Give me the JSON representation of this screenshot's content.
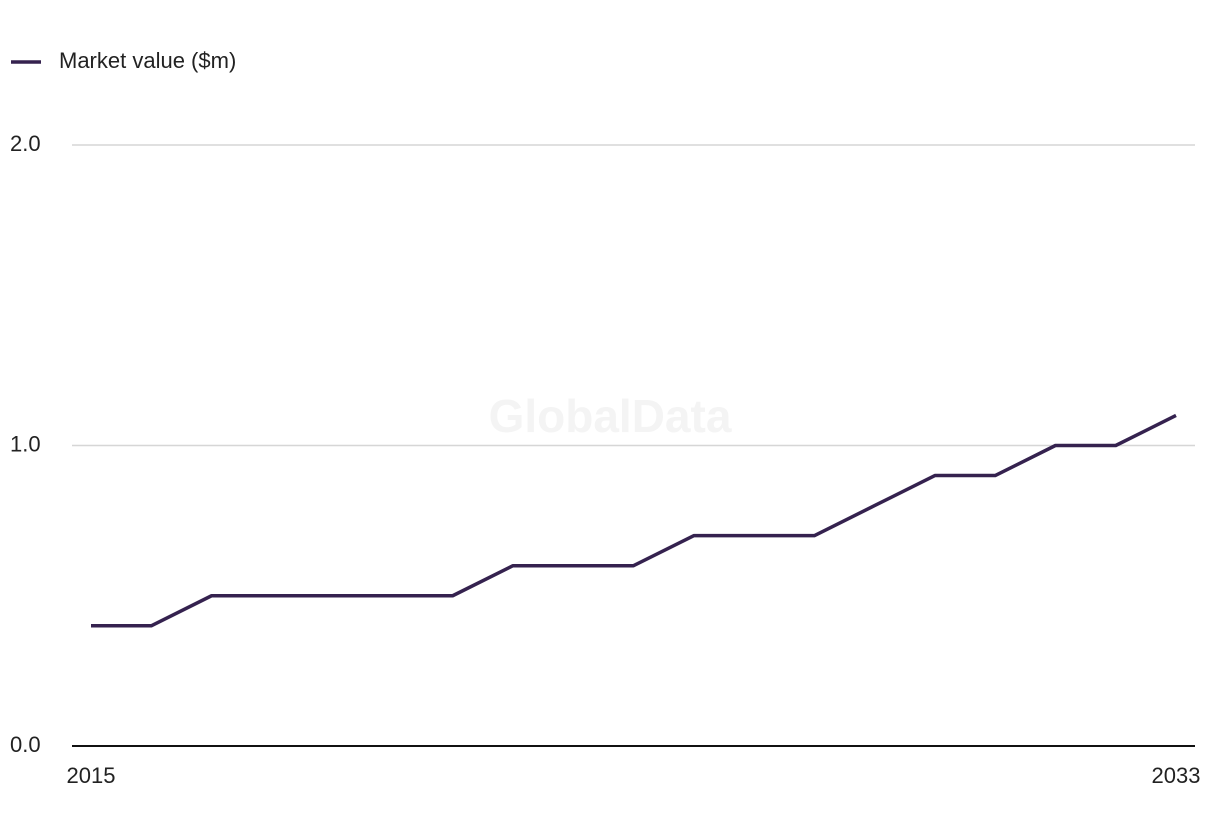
{
  "chart_data": {
    "type": "line",
    "watermark": "GlobalData",
    "x": [
      2015,
      2016,
      2017,
      2018,
      2019,
      2020,
      2021,
      2022,
      2023,
      2024,
      2025,
      2026,
      2027,
      2028,
      2029,
      2030,
      2031,
      2032,
      2033
    ],
    "series": [
      {
        "name": "Market value ($m)",
        "color": "#35224f",
        "values": [
          0.4,
          0.4,
          0.5,
          0.5,
          0.5,
          0.5,
          0.5,
          0.6,
          0.6,
          0.6,
          0.7,
          0.7,
          0.7,
          0.8,
          0.9,
          0.9,
          1.0,
          1.0,
          1.1
        ]
      }
    ],
    "xlim": [
      2015,
      2033
    ],
    "xticks": [
      2015,
      2033
    ],
    "ylim": [
      0,
      2
    ],
    "yticks": [
      {
        "value": 0,
        "label": "0.0"
      },
      {
        "value": 1,
        "label": "1.0"
      },
      {
        "value": 2,
        "label": "2.0"
      }
    ],
    "grid": true,
    "legend": "top-left"
  }
}
